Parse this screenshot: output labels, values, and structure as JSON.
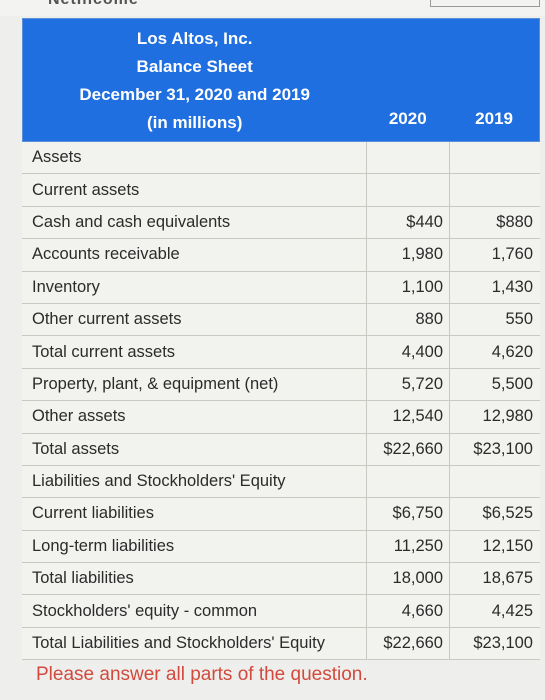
{
  "header": {
    "company": "Los Altos, Inc.",
    "statement": "Balance Sheet",
    "dates": "December 31, 2020 and 2019",
    "units": "(in millions)",
    "year1": "2020",
    "year2": "2019"
  },
  "rows": [
    {
      "label": "Assets",
      "v2020": "",
      "v2019": ""
    },
    {
      "label": "Current assets",
      "v2020": "",
      "v2019": ""
    },
    {
      "label": "Cash and cash equivalents",
      "v2020": "$440",
      "v2019": "$880"
    },
    {
      "label": "Accounts receivable",
      "v2020": "1,980",
      "v2019": "1,760"
    },
    {
      "label": "Inventory",
      "v2020": "1,100",
      "v2019": "1,430"
    },
    {
      "label": "Other current assets",
      "v2020": "880",
      "v2019": "550"
    },
    {
      "label": "Total current assets",
      "v2020": "4,400",
      "v2019": "4,620"
    },
    {
      "label": "Property, plant, & equipment (net)",
      "v2020": "5,720",
      "v2019": "5,500"
    },
    {
      "label": "Other assets",
      "v2020": "12,540",
      "v2019": "12,980"
    },
    {
      "label": "Total assets",
      "v2020": "$22,660",
      "v2019": "$23,100"
    },
    {
      "label": "Liabilities and Stockholders' Equity",
      "v2020": "",
      "v2019": ""
    },
    {
      "label": "Current liabilities",
      "v2020": "$6,750",
      "v2019": "$6,525"
    },
    {
      "label": "Long-term liabilities",
      "v2020": "11,250",
      "v2019": "12,150"
    },
    {
      "label": "Total liabilities",
      "v2020": "18,000",
      "v2019": "18,675"
    },
    {
      "label": "Stockholders' equity - common",
      "v2020": "4,660",
      "v2019": "4,425"
    },
    {
      "label": "Total Liabilities and Stockholders' Equity",
      "v2020": "$22,660",
      "v2019": "$23,100"
    }
  ],
  "prompt": "Please answer all parts of the question.",
  "colors": {
    "header_bg": "#1f6fe0",
    "prompt_text": "#d24a3d"
  }
}
